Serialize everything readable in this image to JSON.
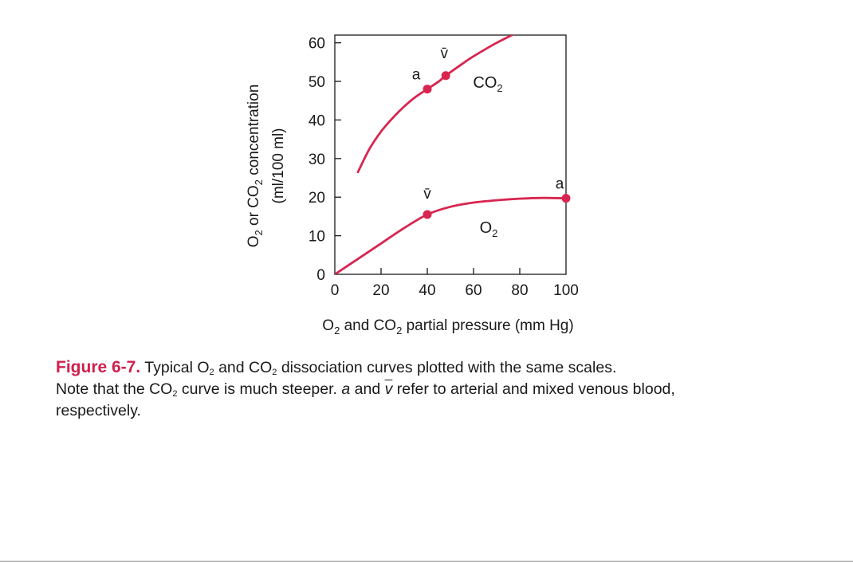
{
  "chart_data": {
    "type": "line",
    "xlabel_prefix": "O",
    "xlabel_sub": "2",
    "xlabel_mid": " and CO",
    "xlabel_sub2": "2",
    "xlabel_suffix": " partial pressure (mm Hg)",
    "ylabel_line1_prefix": "O",
    "ylabel_line1_sub": "2",
    "ylabel_line1_mid": " or CO",
    "ylabel_line1_sub2": "2",
    "ylabel_line1_suffix": " concentration",
    "ylabel_line2": "(ml/100 ml)",
    "xlim": [
      0,
      100
    ],
    "ylim": [
      0,
      62
    ],
    "xticks": [
      0,
      20,
      40,
      60,
      80,
      100
    ],
    "yticks": [
      0,
      10,
      20,
      30,
      40,
      50,
      60
    ],
    "color": "#d8254f",
    "series": [
      {
        "name_base": "CO",
        "name_sub": "2",
        "x": [
          10,
          15,
          20,
          25,
          30,
          35,
          40,
          45,
          48,
          55,
          60,
          70,
          80,
          85
        ],
        "y": [
          26.5,
          32.5,
          37,
          40.5,
          43.5,
          46,
          48,
          50,
          51.5,
          54.5,
          56.5,
          60,
          63,
          64.5
        ],
        "points": [
          {
            "label": "a",
            "x": 40,
            "y": 48
          },
          {
            "label": "v̄",
            "x": 48,
            "y": 51.5
          }
        ]
      },
      {
        "name_base": "O",
        "name_sub": "2",
        "x": [
          0,
          10,
          20,
          30,
          40,
          50,
          60,
          70,
          80,
          90,
          100
        ],
        "y": [
          0,
          4,
          8,
          12,
          15.5,
          17.5,
          18.6,
          19.2,
          19.6,
          19.8,
          19.7
        ],
        "points": [
          {
            "label": "v̄",
            "x": 40,
            "y": 15.5
          },
          {
            "label": "a",
            "x": 100,
            "y": 19.7
          }
        ]
      }
    ]
  },
  "caption": {
    "figure_label": "Figure 6-7.",
    "p1": " Typical O",
    "s1": "2",
    "p2": " and CO",
    "s2": "2",
    "p3": " dissociation curves plotted with the same scales.",
    "p4": "Note that the CO",
    "s3": "2",
    "p5": " curve is much steeper. ",
    "a": "a",
    "p6": " and ",
    "v": "v",
    "p7": " refer to arterial and mixed venous blood,",
    "p8": "respectively."
  }
}
